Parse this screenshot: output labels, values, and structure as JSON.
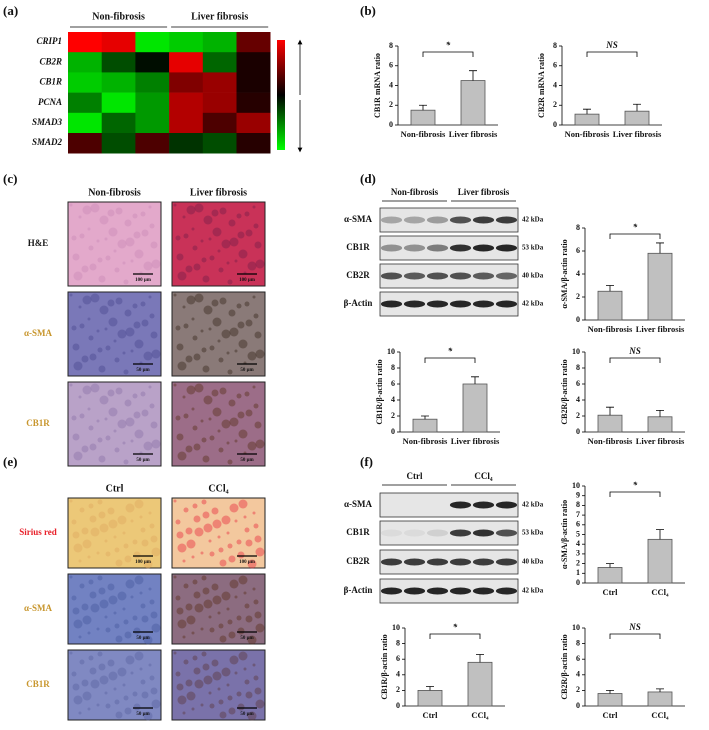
{
  "panel_labels": [
    "(a)",
    "(b)",
    "(c)",
    "(d)",
    "(e)",
    "(f)"
  ],
  "heatmap": {
    "groups": [
      "Non-fibrosis",
      "Liver fibrosis"
    ],
    "genes": [
      "CRIP1",
      "CB2R",
      "CB1R",
      "PCNA",
      "SMAD3",
      "SMAD2"
    ],
    "values": [
      [
        1,
        0.9,
        -0.9,
        -0.8,
        -0.7,
        0.4
      ],
      [
        -0.7,
        -0.3,
        -0.05,
        0.9,
        -0.4,
        0.1
      ],
      [
        -0.8,
        -0.7,
        -0.5,
        0.5,
        0.6,
        0.1
      ],
      [
        -0.5,
        -0.9,
        -0.6,
        0.7,
        0.6,
        0.15
      ],
      [
        -0.9,
        -0.4,
        -0.6,
        0.7,
        0.3,
        0.6
      ],
      [
        0.3,
        -0.3,
        0.3,
        -0.2,
        -0.3,
        0.15
      ]
    ]
  },
  "histology_c": {
    "columns": [
      "Non-fibrosis",
      "Liver fibrosis"
    ],
    "rows": [
      {
        "label": "H&E",
        "color": "#1a1a1a",
        "scale_bar": "100 μm"
      },
      {
        "label": "α-SMA",
        "color": "#c8962d",
        "scale_bar": "50 μm"
      },
      {
        "label": "CB1R",
        "color": "#c8962d",
        "scale_bar": "50 μm"
      }
    ]
  },
  "histology_e": {
    "columns": [
      "Ctrl",
      "CCl₄"
    ],
    "rows": [
      {
        "label": "Sirius red",
        "color": "#e8202a",
        "scale_bar": "100 μm"
      },
      {
        "label": "α-SMA",
        "color": "#c8962d",
        "scale_bar": "50 μm"
      },
      {
        "label": "CB1R",
        "color": "#c8962d",
        "scale_bar": "50 μm"
      }
    ]
  },
  "blot_d": {
    "groups": [
      "Non-fibrosis",
      "Liver fibrosis"
    ],
    "rows": [
      {
        "label": "α-SMA",
        "size": "42 kDa"
      },
      {
        "label": "CB1R",
        "size": "53 kDa"
      },
      {
        "label": "CB2R",
        "size": "40 kDa"
      },
      {
        "label": "β-Actin",
        "size": "42 kDa"
      }
    ]
  },
  "blot_f": {
    "groups": [
      "Ctrl",
      "CCl₄"
    ],
    "rows": [
      {
        "label": "α-SMA",
        "size": "42 kDa"
      },
      {
        "label": "CB1R",
        "size": "53 kDa"
      },
      {
        "label": "CB2R",
        "size": "40 kDa"
      },
      {
        "label": "β-Actin",
        "size": "42 kDa"
      }
    ]
  },
  "chart_data": [
    {
      "type": "bar",
      "ylabel": "CB1R mRNA ratio",
      "categories": [
        "Non-fibrosis",
        "Liver fibrosis"
      ],
      "values": [
        1.5,
        4.5
      ],
      "errors": [
        0.5,
        1.0
      ],
      "ylim": [
        0,
        8
      ],
      "yticks": [
        0,
        2,
        4,
        6,
        8
      ],
      "annotation": "*",
      "color": "#c0c0c0"
    },
    {
      "type": "bar",
      "ylabel": "CB2R mRNA ratio",
      "categories": [
        "Non-fibrosis",
        "Liver fibrosis"
      ],
      "values": [
        1.1,
        1.4
      ],
      "errors": [
        0.5,
        0.7
      ],
      "ylim": [
        0,
        8
      ],
      "yticks": [
        0,
        2,
        4,
        6,
        8
      ],
      "annotation": "NS",
      "color": "#c0c0c0"
    },
    {
      "type": "bar",
      "ylabel": "α-SMA/β-actin ratio",
      "categories": [
        "Non-fibrosis",
        "Liver fibrosis"
      ],
      "values": [
        2.5,
        5.8
      ],
      "errors": [
        0.5,
        0.9
      ],
      "ylim": [
        0,
        8
      ],
      "yticks": [
        0,
        2,
        4,
        6,
        8
      ],
      "annotation": "*",
      "color": "#c0c0c0"
    },
    {
      "type": "bar",
      "ylabel": "CB1R/β-actin ratio",
      "categories": [
        "Non-fibrosis",
        "Liver fibrosis"
      ],
      "values": [
        1.6,
        6.0
      ],
      "errors": [
        0.4,
        0.9
      ],
      "ylim": [
        0,
        10
      ],
      "yticks": [
        0,
        2,
        4,
        6,
        8,
        10
      ],
      "annotation": "*",
      "color": "#c0c0c0"
    },
    {
      "type": "bar",
      "ylabel": "CB2R/β-actin ratio",
      "categories": [
        "Non-fibrosis",
        "Liver fibrosis"
      ],
      "values": [
        2.1,
        1.9
      ],
      "errors": [
        1.0,
        0.8
      ],
      "ylim": [
        0,
        10
      ],
      "yticks": [
        0,
        2,
        4,
        6,
        8,
        10
      ],
      "annotation": "NS",
      "color": "#c0c0c0"
    },
    {
      "type": "bar",
      "ylabel": "α-SMA/β-actin ratio",
      "categories": [
        "Ctrl",
        "CCl₄"
      ],
      "values": [
        1.6,
        4.5
      ],
      "errors": [
        0.4,
        1.0
      ],
      "ylim": [
        0,
        10
      ],
      "yticks": [
        0,
        1,
        2,
        3,
        4,
        5,
        6,
        7,
        8,
        9,
        10
      ],
      "annotation": "*",
      "color": "#c0c0c0"
    },
    {
      "type": "bar",
      "ylabel": "CB1R/β-actin ratio",
      "categories": [
        "Ctrl",
        "CCl₄"
      ],
      "values": [
        2.0,
        5.6
      ],
      "errors": [
        0.5,
        1.0
      ],
      "ylim": [
        0,
        10
      ],
      "yticks": [
        0,
        2,
        4,
        6,
        8,
        10
      ],
      "annotation": "*",
      "color": "#c0c0c0"
    },
    {
      "type": "bar",
      "ylabel": "CB2R/β-actin ratio",
      "categories": [
        "Ctrl",
        "CCl₄"
      ],
      "values": [
        1.6,
        1.8
      ],
      "errors": [
        0.4,
        0.4
      ],
      "ylim": [
        0,
        10
      ],
      "yticks": [
        0,
        2,
        4,
        6,
        8,
        10
      ],
      "annotation": "NS",
      "color": "#c0c0c0"
    }
  ]
}
